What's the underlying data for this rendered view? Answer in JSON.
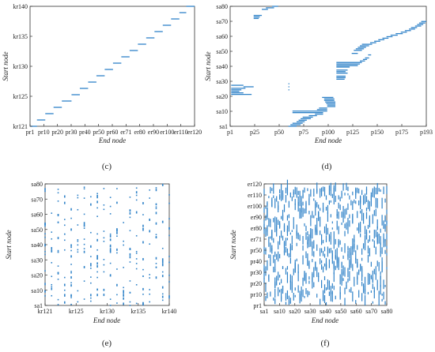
{
  "figure": {
    "background": "#ffffff",
    "mark_color": "#2f82c8",
    "axis_color": "#333333"
  },
  "chart_data": [
    {
      "id": "c",
      "type": "scatter",
      "panel_label": "(c)",
      "xlabel": "End node",
      "ylabel": "Start node",
      "x_ticks": [
        "pr1",
        "pr10",
        "pr20",
        "pr30",
        "pr40",
        "pr50",
        "pr60",
        "er71",
        "er80",
        "er90",
        "er100",
        "er110",
        "er120"
      ],
      "y_ticks": [
        "kr121",
        "kr125",
        "kr130",
        "kr135",
        "kr140"
      ],
      "xlim": [
        1,
        120
      ],
      "ylim": [
        121,
        140
      ],
      "mark": "horizontal-segments",
      "segments": [
        {
          "y": 121,
          "x0": 1,
          "x1": 6
        },
        {
          "y": 122,
          "x0": 6,
          "x1": 12
        },
        {
          "y": 123,
          "x0": 12,
          "x1": 18
        },
        {
          "y": 124,
          "x0": 18,
          "x1": 24
        },
        {
          "y": 125,
          "x0": 24,
          "x1": 31
        },
        {
          "y": 126,
          "x0": 31,
          "x1": 37
        },
        {
          "y": 127,
          "x0": 37,
          "x1": 43
        },
        {
          "y": 128,
          "x0": 43,
          "x1": 49
        },
        {
          "y": 129,
          "x0": 49,
          "x1": 55
        },
        {
          "y": 130,
          "x0": 55,
          "x1": 61
        },
        {
          "y": 131,
          "x0": 61,
          "x1": 67
        },
        {
          "y": 132,
          "x0": 67,
          "x1": 73
        },
        {
          "y": 133,
          "x0": 73,
          "x1": 79
        },
        {
          "y": 134,
          "x0": 79,
          "x1": 85
        },
        {
          "y": 135,
          "x0": 85,
          "x1": 91
        },
        {
          "y": 136,
          "x0": 91,
          "x1": 97
        },
        {
          "y": 137,
          "x0": 97,
          "x1": 103
        },
        {
          "y": 138,
          "x0": 103,
          "x1": 109
        },
        {
          "y": 139,
          "x0": 109,
          "x1": 114
        },
        {
          "y": 140,
          "x0": 114,
          "x1": 120
        }
      ]
    },
    {
      "id": "d",
      "type": "scatter",
      "panel_label": "(d)",
      "xlabel": "End node",
      "ylabel": "Start node",
      "x_ticks": [
        "p1",
        "p25",
        "p50",
        "p75",
        "p100",
        "p125",
        "p150",
        "p175",
        "p193"
      ],
      "y_ticks": [
        "sa1",
        "sa10",
        "sa20",
        "sa30",
        "sa40",
        "sa50",
        "sa60",
        "sa70",
        "sa80"
      ],
      "xlim": [
        1,
        193
      ],
      "ylim": [
        1,
        80
      ],
      "mark": "horizontal-segments",
      "segments": [
        {
          "y": 80,
          "x0": 42,
          "x1": 48
        },
        {
          "y": 79,
          "x0": 36,
          "x1": 44
        },
        {
          "y": 78,
          "x0": 32,
          "x1": 38
        },
        {
          "y": 74,
          "x0": 24,
          "x1": 32
        },
        {
          "y": 73,
          "x0": 24,
          "x1": 30
        },
        {
          "y": 72,
          "x0": 24,
          "x1": 29
        },
        {
          "y": 70,
          "x0": 188,
          "x1": 193
        },
        {
          "y": 69,
          "x0": 186,
          "x1": 192
        },
        {
          "y": 68,
          "x0": 184,
          "x1": 190
        },
        {
          "y": 67,
          "x0": 182,
          "x1": 188
        },
        {
          "y": 66,
          "x0": 178,
          "x1": 184
        },
        {
          "y": 65,
          "x0": 176,
          "x1": 182
        },
        {
          "y": 64,
          "x0": 172,
          "x1": 178
        },
        {
          "y": 63,
          "x0": 168,
          "x1": 174
        },
        {
          "y": 62,
          "x0": 163,
          "x1": 170
        },
        {
          "y": 61,
          "x0": 158,
          "x1": 165
        },
        {
          "y": 60,
          "x0": 154,
          "x1": 160
        },
        {
          "y": 59,
          "x0": 150,
          "x1": 156
        },
        {
          "y": 58,
          "x0": 146,
          "x1": 152
        },
        {
          "y": 57,
          "x0": 142,
          "x1": 148
        },
        {
          "y": 56,
          "x0": 138,
          "x1": 144
        },
        {
          "y": 55,
          "x0": 130,
          "x1": 140
        },
        {
          "y": 54,
          "x0": 128,
          "x1": 137
        },
        {
          "y": 53,
          "x0": 126,
          "x1": 134
        },
        {
          "y": 52,
          "x0": 124,
          "x1": 132
        },
        {
          "y": 51,
          "x0": 122,
          "x1": 130
        },
        {
          "y": 49,
          "x0": 120,
          "x1": 126
        },
        {
          "y": 48,
          "x0": 136,
          "x1": 139
        },
        {
          "y": 46,
          "x0": 133,
          "x1": 137
        },
        {
          "y": 45,
          "x0": 131,
          "x1": 135
        },
        {
          "y": 44,
          "x0": 128,
          "x1": 133
        },
        {
          "y": 43,
          "x0": 105,
          "x1": 130
        },
        {
          "y": 42,
          "x0": 105,
          "x1": 128
        },
        {
          "y": 41,
          "x0": 105,
          "x1": 126
        },
        {
          "y": 40,
          "x0": 105,
          "x1": 118
        },
        {
          "y": 38,
          "x0": 105,
          "x1": 116
        },
        {
          "y": 37,
          "x0": 105,
          "x1": 114
        },
        {
          "y": 36,
          "x0": 105,
          "x1": 116
        },
        {
          "y": 34,
          "x0": 105,
          "x1": 114
        },
        {
          "y": 33,
          "x0": 105,
          "x1": 114
        },
        {
          "y": 32,
          "x0": 105,
          "x1": 113
        },
        {
          "y": 28,
          "x0": 2,
          "x1": 14
        },
        {
          "y": 27,
          "x0": 14,
          "x1": 24
        },
        {
          "y": 26,
          "x0": 2,
          "x1": 16
        },
        {
          "y": 25,
          "x0": 2,
          "x1": 12
        },
        {
          "y": 24,
          "x0": 2,
          "x1": 10
        },
        {
          "y": 23,
          "x0": 2,
          "x1": 14
        },
        {
          "y": 22,
          "x0": 2,
          "x1": 22
        },
        {
          "y": 20,
          "x0": 91,
          "x1": 102
        },
        {
          "y": 19,
          "x0": 93,
          "x1": 103
        },
        {
          "y": 18,
          "x0": 93,
          "x1": 103
        },
        {
          "y": 17,
          "x0": 94,
          "x1": 104
        },
        {
          "y": 16,
          "x0": 95,
          "x1": 104
        },
        {
          "y": 15,
          "x0": 96,
          "x1": 104
        },
        {
          "y": 14,
          "x0": 96,
          "x1": 104
        },
        {
          "y": 13,
          "x0": 88,
          "x1": 96
        },
        {
          "y": 12,
          "x0": 86,
          "x1": 96
        },
        {
          "y": 11,
          "x0": 62,
          "x1": 96
        },
        {
          "y": 10,
          "x0": 62,
          "x1": 92
        },
        {
          "y": 9,
          "x0": 84,
          "x1": 92
        },
        {
          "y": 8,
          "x0": 78,
          "x1": 86
        },
        {
          "y": 7,
          "x0": 72,
          "x1": 82
        },
        {
          "y": 6,
          "x0": 70,
          "x1": 80
        },
        {
          "y": 5,
          "x0": 68,
          "x1": 76
        },
        {
          "y": 4,
          "x0": 66,
          "x1": 74
        },
        {
          "y": 3,
          "x0": 62,
          "x1": 72
        },
        {
          "y": 2,
          "x0": 60,
          "x1": 70
        },
        {
          "y": 1,
          "x0": 58,
          "x1": 66
        },
        {
          "y": 29,
          "x0": 58,
          "x1": 59
        },
        {
          "y": 27,
          "x0": 58,
          "x1": 59
        },
        {
          "y": 25,
          "x0": 58,
          "x1": 59
        }
      ]
    },
    {
      "id": "e",
      "type": "scatter",
      "panel_label": "(e)",
      "xlabel": "End node",
      "ylabel": "Start node",
      "x_ticks": [
        "kr121",
        "kr125",
        "kr130",
        "kr135",
        "kr140"
      ],
      "y_ticks": [
        "sa1",
        "sa10",
        "sa20",
        "sa30",
        "sa40",
        "sa50",
        "sa60",
        "sa70",
        "sa80"
      ],
      "xlim": [
        121,
        140
      ],
      "ylim": [
        1,
        80
      ],
      "mark": "points",
      "points_per_column": [
        16,
        12,
        18,
        14,
        17,
        11,
        15,
        13,
        19,
        12,
        16,
        14,
        12,
        17,
        13,
        15,
        11,
        16,
        14,
        12
      ]
    },
    {
      "id": "f",
      "type": "scatter",
      "panel_label": "(f)",
      "xlabel": "End node",
      "ylabel": "Start node",
      "x_ticks": [
        "sa1",
        "sa10",
        "sa20",
        "sa30",
        "sa40",
        "sa50",
        "sa60",
        "sa70",
        "sa80"
      ],
      "y_ticks": [
        "pr1",
        "pr10",
        "pr20",
        "pr30",
        "pr40",
        "pr50",
        "er71",
        "er80",
        "er90",
        "er100",
        "er110",
        "er120"
      ],
      "xlim": [
        1,
        80
      ],
      "ylim": [
        1,
        120
      ],
      "mark": "vertical-segments",
      "segments_per_column": [
        9,
        7,
        10,
        6,
        8,
        9,
        7,
        11,
        6,
        8,
        10,
        7,
        9,
        6,
        8,
        10,
        7,
        9,
        8,
        6,
        10,
        7,
        8,
        9,
        6,
        11,
        7,
        8,
        9,
        10,
        6,
        8,
        7,
        9,
        10,
        6,
        8,
        7,
        9,
        8,
        10,
        6,
        7,
        9,
        8,
        10,
        7,
        6,
        9,
        8,
        11,
        7,
        8,
        6,
        10,
        9,
        7,
        8,
        6,
        10,
        9,
        7,
        8,
        10,
        6,
        9,
        7,
        8,
        10,
        6,
        9,
        8,
        7,
        10,
        6,
        9,
        8,
        7,
        10,
        8
      ]
    }
  ]
}
